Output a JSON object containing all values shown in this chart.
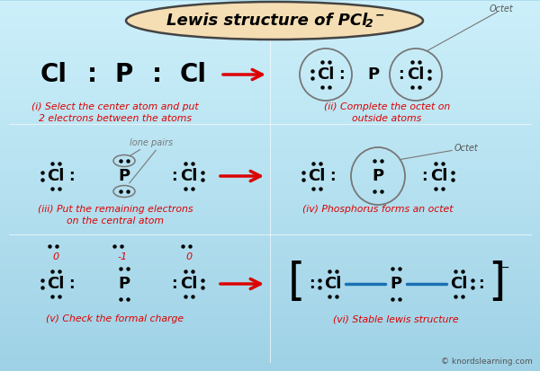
{
  "bg_color": "#a8d8ea",
  "title_box_color": "#f5deb3",
  "title_box_edge": "#555555",
  "red_color": "#dd0000",
  "arrow_color": "#dd0000",
  "black_color": "#111111",
  "gray_color": "#888888",
  "blue_color": "#1a6fb5",
  "caption_i": "(i) Select the center atom and put\n2 electrons between the atoms",
  "caption_ii": "(ii) Complete the octet on\noutside atoms",
  "caption_iii": "(iii) Put the remaining electrons\non the central atom",
  "caption_iv": "(iv) Phosphorus forms an octet",
  "caption_v": "(v) Check the formal charge",
  "caption_vi": "(vi) Stable lewis structure",
  "watermark": "© knordslearning.com"
}
